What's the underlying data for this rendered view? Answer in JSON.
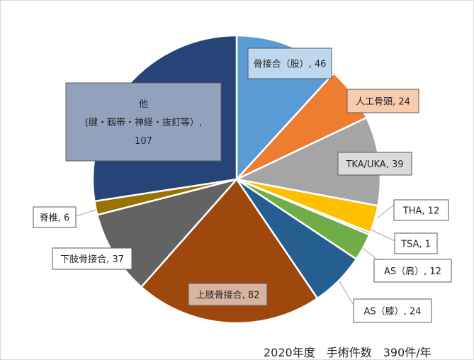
{
  "chart_data": {
    "type": "pie",
    "total_label": "2020年度　手術件数　390件/年",
    "start_angle_deg": 0,
    "slices": [
      {
        "name": "骨接合（股）",
        "value": 46,
        "label": "骨接合（股）, 46",
        "color": "#5b9bd5",
        "box_fill": "#bdd7ee"
      },
      {
        "name": "人工骨頭",
        "value": 24,
        "label": "人工骨頭, 24",
        "color": "#ed7d31",
        "box_fill": "#f8cbad"
      },
      {
        "name": "TKA/UKA",
        "value": 39,
        "label": "TKA/UKA, 39",
        "color": "#a5a5a5",
        "box_fill": "#dbdbdb"
      },
      {
        "name": "THA",
        "value": 12,
        "label": "THA, 12",
        "color": "#ffc000",
        "box_fill": "#ffffff"
      },
      {
        "name": "TSA",
        "value": 1,
        "label": "TSA, 1",
        "color": "#4472c4",
        "box_fill": "#ffffff"
      },
      {
        "name": "AS（肩）",
        "value": 12,
        "label": "AS（肩）, 12",
        "color": "#70ad47",
        "box_fill": "#ffffff"
      },
      {
        "name": "AS（膝）",
        "value": 24,
        "label": "AS（膝）, 24",
        "color": "#255e91",
        "box_fill": "#ffffff"
      },
      {
        "name": "上肢骨接合",
        "value": 82,
        "label": "上肢骨接合, 82",
        "color": "#9e480e",
        "box_fill": "#d7b49f"
      },
      {
        "name": "下肢骨接合",
        "value": 37,
        "label": "下肢骨接合, 37",
        "color": "#636363",
        "box_fill": "#ffffff"
      },
      {
        "name": "脊椎",
        "value": 6,
        "label": "脊椎, 6",
        "color": "#997300",
        "box_fill": "#ffffff"
      },
      {
        "name": "他",
        "value": 107,
        "label_lines": [
          "他",
          "(腱・靱帯・神経・抜釘等）,",
          "107"
        ],
        "color": "#264478",
        "box_fill": "#92a2bd"
      }
    ]
  }
}
